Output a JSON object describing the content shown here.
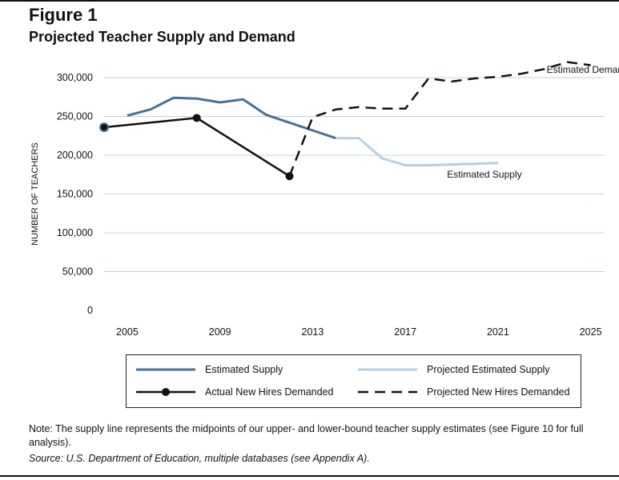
{
  "figure_label": "Figure 1",
  "title": "Projected Teacher Supply and Demand",
  "note": "Note: The supply line represents the midpoints of our upper- and lower-bound teacher supply estimates (see Figure 10 for full analysis).",
  "source": "Source: U.S. Department of Education, multiple databases (see Appendix A).",
  "chart_data": {
    "type": "line",
    "title": "Projected Teacher Supply and Demand",
    "ylabel": "NUMBER OF TEACHERS",
    "xlabel": "",
    "xlim": [
      2004,
      2025.6
    ],
    "ylim": [
      0,
      300000
    ],
    "grid": true,
    "x_ticks": [
      2005,
      2009,
      2013,
      2017,
      2021,
      2025
    ],
    "y_ticks": [
      {
        "value": 0,
        "label": "0"
      },
      {
        "value": 50000,
        "label": "50,000"
      },
      {
        "value": 100000,
        "label": "100,000"
      },
      {
        "value": 150000,
        "label": "150,000"
      },
      {
        "value": 200000,
        "label": "200,000"
      },
      {
        "value": 250000,
        "label": "250,000"
      },
      {
        "value": 300000,
        "label": "300,000"
      }
    ],
    "series": [
      {
        "name": "Estimated Supply",
        "color": "#4a6f95",
        "style": "solid",
        "points": [
          [
            2005,
            251000
          ],
          [
            2006,
            259000
          ],
          [
            2007,
            274000
          ],
          [
            2008,
            273000
          ],
          [
            2009,
            268000
          ],
          [
            2010,
            272000
          ],
          [
            2011,
            252000
          ],
          [
            2012,
            242000
          ],
          [
            2013,
            232000
          ],
          [
            2014,
            222000
          ]
        ]
      },
      {
        "name": "Projected Estimated Supply",
        "color": "#b7cfdf",
        "style": "solid",
        "points": [
          [
            2014,
            222000
          ],
          [
            2015,
            222000
          ],
          [
            2016,
            196000
          ],
          [
            2017,
            187000
          ],
          [
            2018,
            187000
          ],
          [
            2019,
            188000
          ],
          [
            2020,
            189000
          ],
          [
            2021,
            190000
          ]
        ]
      },
      {
        "name": "Actual New Hires Demanded",
        "color": "#111111",
        "style": "solid-markers",
        "points": [
          [
            2004,
            236000
          ],
          [
            2008,
            248000
          ],
          [
            2012,
            173000
          ]
        ]
      },
      {
        "name": "Projected New Hires Demanded",
        "color": "#111111",
        "style": "dashed",
        "points": [
          [
            2012,
            173000
          ],
          [
            2013,
            249000
          ],
          [
            2014,
            259000
          ],
          [
            2015,
            262000
          ],
          [
            2016,
            260000
          ],
          [
            2017,
            260000
          ],
          [
            2018,
            299000
          ],
          [
            2019,
            295000
          ],
          [
            2020,
            299000
          ],
          [
            2021,
            301000
          ],
          [
            2022,
            305000
          ],
          [
            2023,
            311000
          ],
          [
            2024,
            320000
          ],
          [
            2025,
            316000
          ]
        ]
      }
    ],
    "annotations": [
      {
        "text": "Estimated Demand",
        "x": 2023.1,
        "y": 306000
      },
      {
        "text": "Estimated Supply",
        "x": 2018.8,
        "y": 171000
      }
    ],
    "legend": {
      "placement": "bottom",
      "items": [
        {
          "label": "Estimated Supply",
          "color": "#4a6f95",
          "style": "solid"
        },
        {
          "label": "Projected Estimated Supply",
          "color": "#b7cfdf",
          "style": "solid"
        },
        {
          "label": "Actual New Hires Demanded",
          "color": "#111111",
          "style": "solid-markers"
        },
        {
          "label": "Projected New Hires Demanded",
          "color": "#111111",
          "style": "dashed"
        }
      ]
    }
  }
}
